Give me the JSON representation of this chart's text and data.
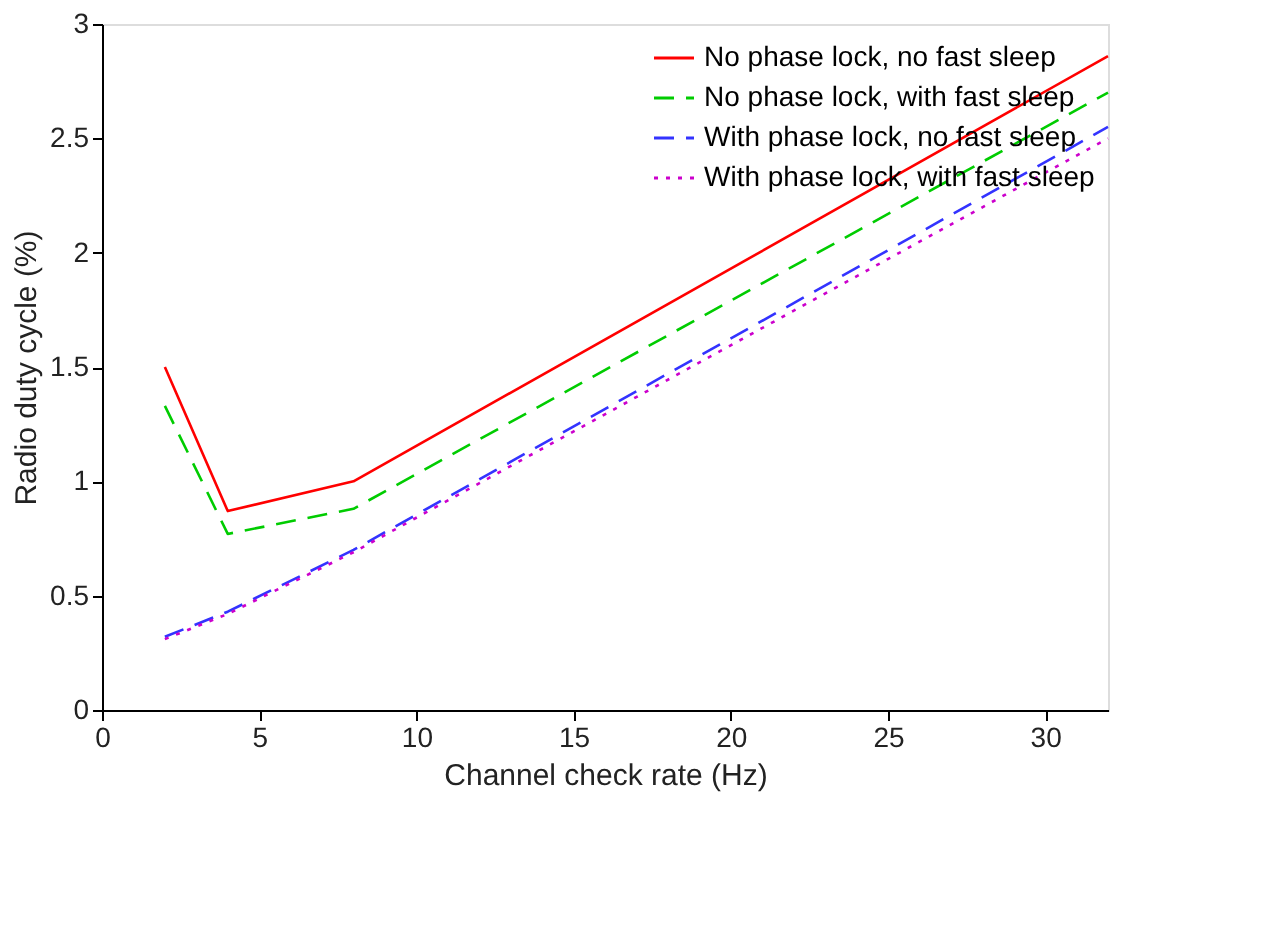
{
  "chart_data": {
    "type": "line",
    "xlabel": "Channel check rate (Hz)",
    "ylabel": "Radio duty cycle (%)",
    "xlim": [
      0,
      32
    ],
    "ylim": [
      0,
      3
    ],
    "xticks": [
      0,
      5,
      10,
      15,
      20,
      25,
      30
    ],
    "yticks": [
      0,
      0.5,
      1,
      1.5,
      2,
      2.5,
      3
    ],
    "x": [
      2,
      4,
      8,
      32
    ],
    "legend": "top right",
    "grid": false,
    "marker": "none",
    "series": [
      {
        "name": "No phase lock, no fast sleep",
        "color": "#ff0000",
        "line_style": "solid",
        "values": [
          1.5,
          0.87,
          1.0,
          2.86
        ]
      },
      {
        "name": "No phase lock, with fast sleep",
        "color": "#00cc00",
        "line_style": "dashed",
        "values": [
          1.33,
          0.77,
          0.88,
          2.7
        ]
      },
      {
        "name": "With phase lock, no fast sleep",
        "color": "#3333ff",
        "line_style": "dashed",
        "values": [
          0.32,
          0.43,
          0.7,
          2.55
        ]
      },
      {
        "name": "With phase lock, with fast sleep",
        "color": "#cc00cc",
        "line_style": "dotted",
        "values": [
          0.31,
          0.42,
          0.69,
          2.5
        ]
      }
    ]
  }
}
